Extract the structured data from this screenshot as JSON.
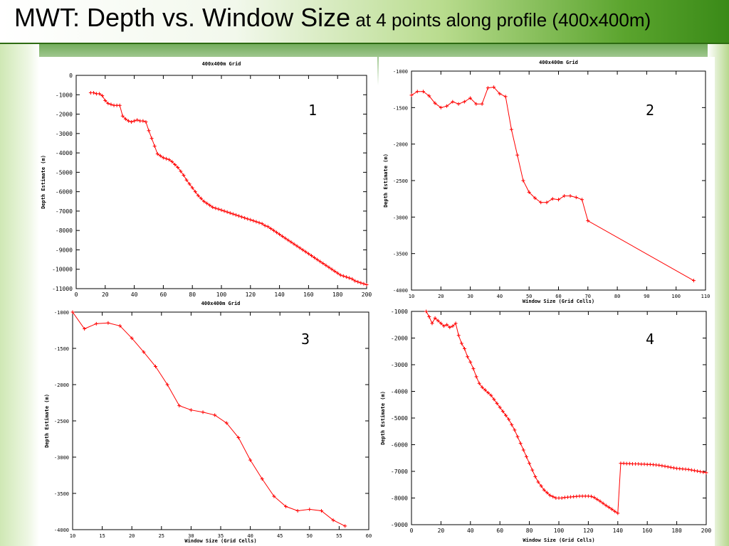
{
  "slide": {
    "title_main": "MWT: Depth vs. Window Size",
    "title_sub": " at 4 points along profile (400x400m)"
  },
  "colors": {
    "series": "#ff0000",
    "axis": "#000000"
  },
  "chart_data": [
    {
      "type": "line",
      "panel_number": "1",
      "title": "400x400m Grid",
      "xlabel": "",
      "ylabel": "Depth Estimate (m)",
      "xlim": [
        0,
        200
      ],
      "ylim": [
        -11000,
        0
      ],
      "xticks": [
        0,
        20,
        40,
        60,
        80,
        100,
        120,
        140,
        160,
        180,
        200
      ],
      "yticks": [
        0,
        -1000,
        -2000,
        -3000,
        -4000,
        -5000,
        -6000,
        -7000,
        -8000,
        -9000,
        -10000,
        -11000
      ],
      "markers": true,
      "series": [
        {
          "x": [
            10,
            12,
            14,
            16,
            18,
            20,
            22,
            24,
            26,
            28,
            30,
            32,
            34,
            36,
            38,
            40,
            42,
            44,
            46,
            48,
            50,
            52,
            54,
            56,
            58,
            60,
            62,
            64,
            66,
            68,
            70,
            72,
            74,
            76,
            78,
            80,
            82,
            84,
            86,
            88,
            90,
            92,
            94,
            96,
            98,
            100,
            102,
            104,
            106,
            108,
            110,
            112,
            114,
            116,
            118,
            120,
            122,
            124,
            126,
            128,
            130,
            132,
            134,
            136,
            138,
            140,
            142,
            144,
            146,
            148,
            150,
            152,
            154,
            156,
            158,
            160,
            162,
            164,
            166,
            168,
            170,
            172,
            174,
            176,
            178,
            180,
            182,
            184,
            186,
            188,
            190,
            192,
            194,
            196,
            198,
            200
          ],
          "y": [
            -900,
            -900,
            -950,
            -950,
            -1050,
            -1300,
            -1450,
            -1500,
            -1550,
            -1550,
            -1550,
            -2100,
            -2250,
            -2350,
            -2400,
            -2350,
            -2300,
            -2350,
            -2350,
            -2400,
            -2850,
            -3250,
            -3650,
            -4050,
            -4150,
            -4250,
            -4300,
            -4350,
            -4450,
            -4600,
            -4750,
            -4950,
            -5150,
            -5400,
            -5600,
            -5800,
            -6000,
            -6200,
            -6350,
            -6500,
            -6600,
            -6700,
            -6800,
            -6850,
            -6900,
            -6950,
            -7000,
            -7050,
            -7100,
            -7150,
            -7200,
            -7250,
            -7300,
            -7350,
            -7400,
            -7450,
            -7500,
            -7550,
            -7600,
            -7650,
            -7750,
            -7800,
            -7900,
            -8000,
            -8100,
            -8200,
            -8300,
            -8400,
            -8500,
            -8600,
            -8700,
            -8800,
            -8900,
            -9000,
            -9100,
            -9200,
            -9300,
            -9400,
            -9500,
            -9600,
            -9700,
            -9800,
            -9900,
            -10000,
            -10100,
            -10200,
            -10300,
            -10350,
            -10400,
            -10450,
            -10500,
            -10600,
            -10650,
            -10700,
            -10750,
            -10800
          ]
        }
      ]
    },
    {
      "type": "line",
      "panel_number": "2",
      "title": "400x400m Grid",
      "xlabel": "Window Size (Grid Cells)",
      "ylabel": "Depth Estimate (m)",
      "xlim": [
        10,
        110
      ],
      "ylim": [
        -4000,
        -1000
      ],
      "xticks": [
        10,
        20,
        30,
        40,
        50,
        60,
        70,
        80,
        90,
        100,
        110
      ],
      "yticks": [
        -1000,
        -1500,
        -2000,
        -2500,
        -3000,
        -3500,
        -4000
      ],
      "markers": true,
      "series": [
        {
          "x": [
            10,
            12,
            14,
            16,
            18,
            20,
            22,
            24,
            26,
            28,
            30,
            32,
            34,
            36,
            38,
            40,
            42,
            44,
            46,
            48,
            50,
            52,
            54,
            56,
            58,
            60,
            62,
            64,
            66,
            68,
            70,
            106
          ],
          "y": [
            -1330,
            -1280,
            -1280,
            -1340,
            -1440,
            -1500,
            -1480,
            -1420,
            -1450,
            -1420,
            -1370,
            -1450,
            -1450,
            -1230,
            -1220,
            -1310,
            -1350,
            -1800,
            -2150,
            -2500,
            -2660,
            -2740,
            -2800,
            -2800,
            -2750,
            -2760,
            -2710,
            -2710,
            -2730,
            -2760,
            -3050,
            -3870
          ]
        }
      ]
    },
    {
      "type": "line",
      "panel_number": "3",
      "title": "400x400m Grid",
      "xlabel": "Window Size (Grid Cells)",
      "ylabel": "Depth Estimate (m)",
      "xlim": [
        10,
        60
      ],
      "ylim": [
        -4000,
        -1000
      ],
      "xticks": [
        10,
        15,
        20,
        25,
        30,
        35,
        40,
        45,
        50,
        55,
        60
      ],
      "yticks": [
        -1000,
        -1500,
        -2000,
        -2500,
        -3000,
        -3500,
        -4000
      ],
      "markers": true,
      "series": [
        {
          "x": [
            10,
            12,
            14,
            16,
            18,
            20,
            22,
            24,
            26,
            28,
            30,
            32,
            34,
            36,
            38,
            40,
            42,
            44,
            46,
            48,
            50,
            52,
            54,
            56
          ],
          "y": [
            -1000,
            -1230,
            -1160,
            -1150,
            -1190,
            -1360,
            -1550,
            -1750,
            -2000,
            -2290,
            -2350,
            -2380,
            -2420,
            -2530,
            -2730,
            -3040,
            -3300,
            -3540,
            -3680,
            -3740,
            -3720,
            -3740,
            -3870,
            -3950
          ]
        }
      ]
    },
    {
      "type": "line",
      "panel_number": "4",
      "title": "",
      "xlabel": "Window Size (Grid Cells)",
      "ylabel": "Depth Estimate (m)",
      "xlim": [
        0,
        200
      ],
      "ylim": [
        -9000,
        -1000
      ],
      "xticks": [
        0,
        20,
        40,
        60,
        80,
        100,
        120,
        140,
        160,
        180,
        200
      ],
      "yticks": [
        -1000,
        -2000,
        -3000,
        -4000,
        -5000,
        -6000,
        -7000,
        -8000,
        -9000
      ],
      "markers": true,
      "series": [
        {
          "x": [
            10,
            12,
            14,
            16,
            18,
            20,
            22,
            24,
            26,
            28,
            30,
            32,
            34,
            36,
            38,
            40,
            42,
            44,
            46,
            48,
            50,
            52,
            54,
            56,
            58,
            60,
            62,
            64,
            66,
            68,
            70,
            72,
            74,
            76,
            78,
            80,
            82,
            84,
            86,
            88,
            90,
            92,
            94,
            96,
            98,
            100,
            102,
            104,
            106,
            108,
            110,
            112,
            114,
            116,
            118,
            120,
            122,
            124,
            126,
            128,
            130,
            132,
            134,
            136,
            138,
            140,
            142,
            144,
            146,
            148,
            150,
            152,
            154,
            156,
            158,
            160,
            162,
            164,
            166,
            168,
            170,
            172,
            174,
            176,
            178,
            180,
            182,
            184,
            186,
            188,
            190,
            192,
            194,
            196,
            198,
            200
          ],
          "y": [
            -1000,
            -1200,
            -1450,
            -1250,
            -1350,
            -1450,
            -1550,
            -1500,
            -1600,
            -1550,
            -1450,
            -1900,
            -2200,
            -2400,
            -2700,
            -2900,
            -3150,
            -3450,
            -3700,
            -3850,
            -3950,
            -4050,
            -4150,
            -4300,
            -4450,
            -4600,
            -4750,
            -4900,
            -5050,
            -5250,
            -5450,
            -5700,
            -5950,
            -6200,
            -6450,
            -6700,
            -6950,
            -7200,
            -7400,
            -7550,
            -7700,
            -7800,
            -7900,
            -7950,
            -8000,
            -8000,
            -8000,
            -7980,
            -7970,
            -7960,
            -7950,
            -7940,
            -7930,
            -7930,
            -7930,
            -7930,
            -7940,
            -7980,
            -8050,
            -8120,
            -8200,
            -8280,
            -8350,
            -8420,
            -8500,
            -8570,
            -6700,
            -6700,
            -6710,
            -6710,
            -6720,
            -6720,
            -6720,
            -6730,
            -6730,
            -6740,
            -6740,
            -6750,
            -6760,
            -6770,
            -6790,
            -6810,
            -6830,
            -6850,
            -6870,
            -6890,
            -6900,
            -6910,
            -6920,
            -6930,
            -6950,
            -6970,
            -6990,
            -7010,
            -7030,
            -7050
          ]
        }
      ]
    }
  ]
}
